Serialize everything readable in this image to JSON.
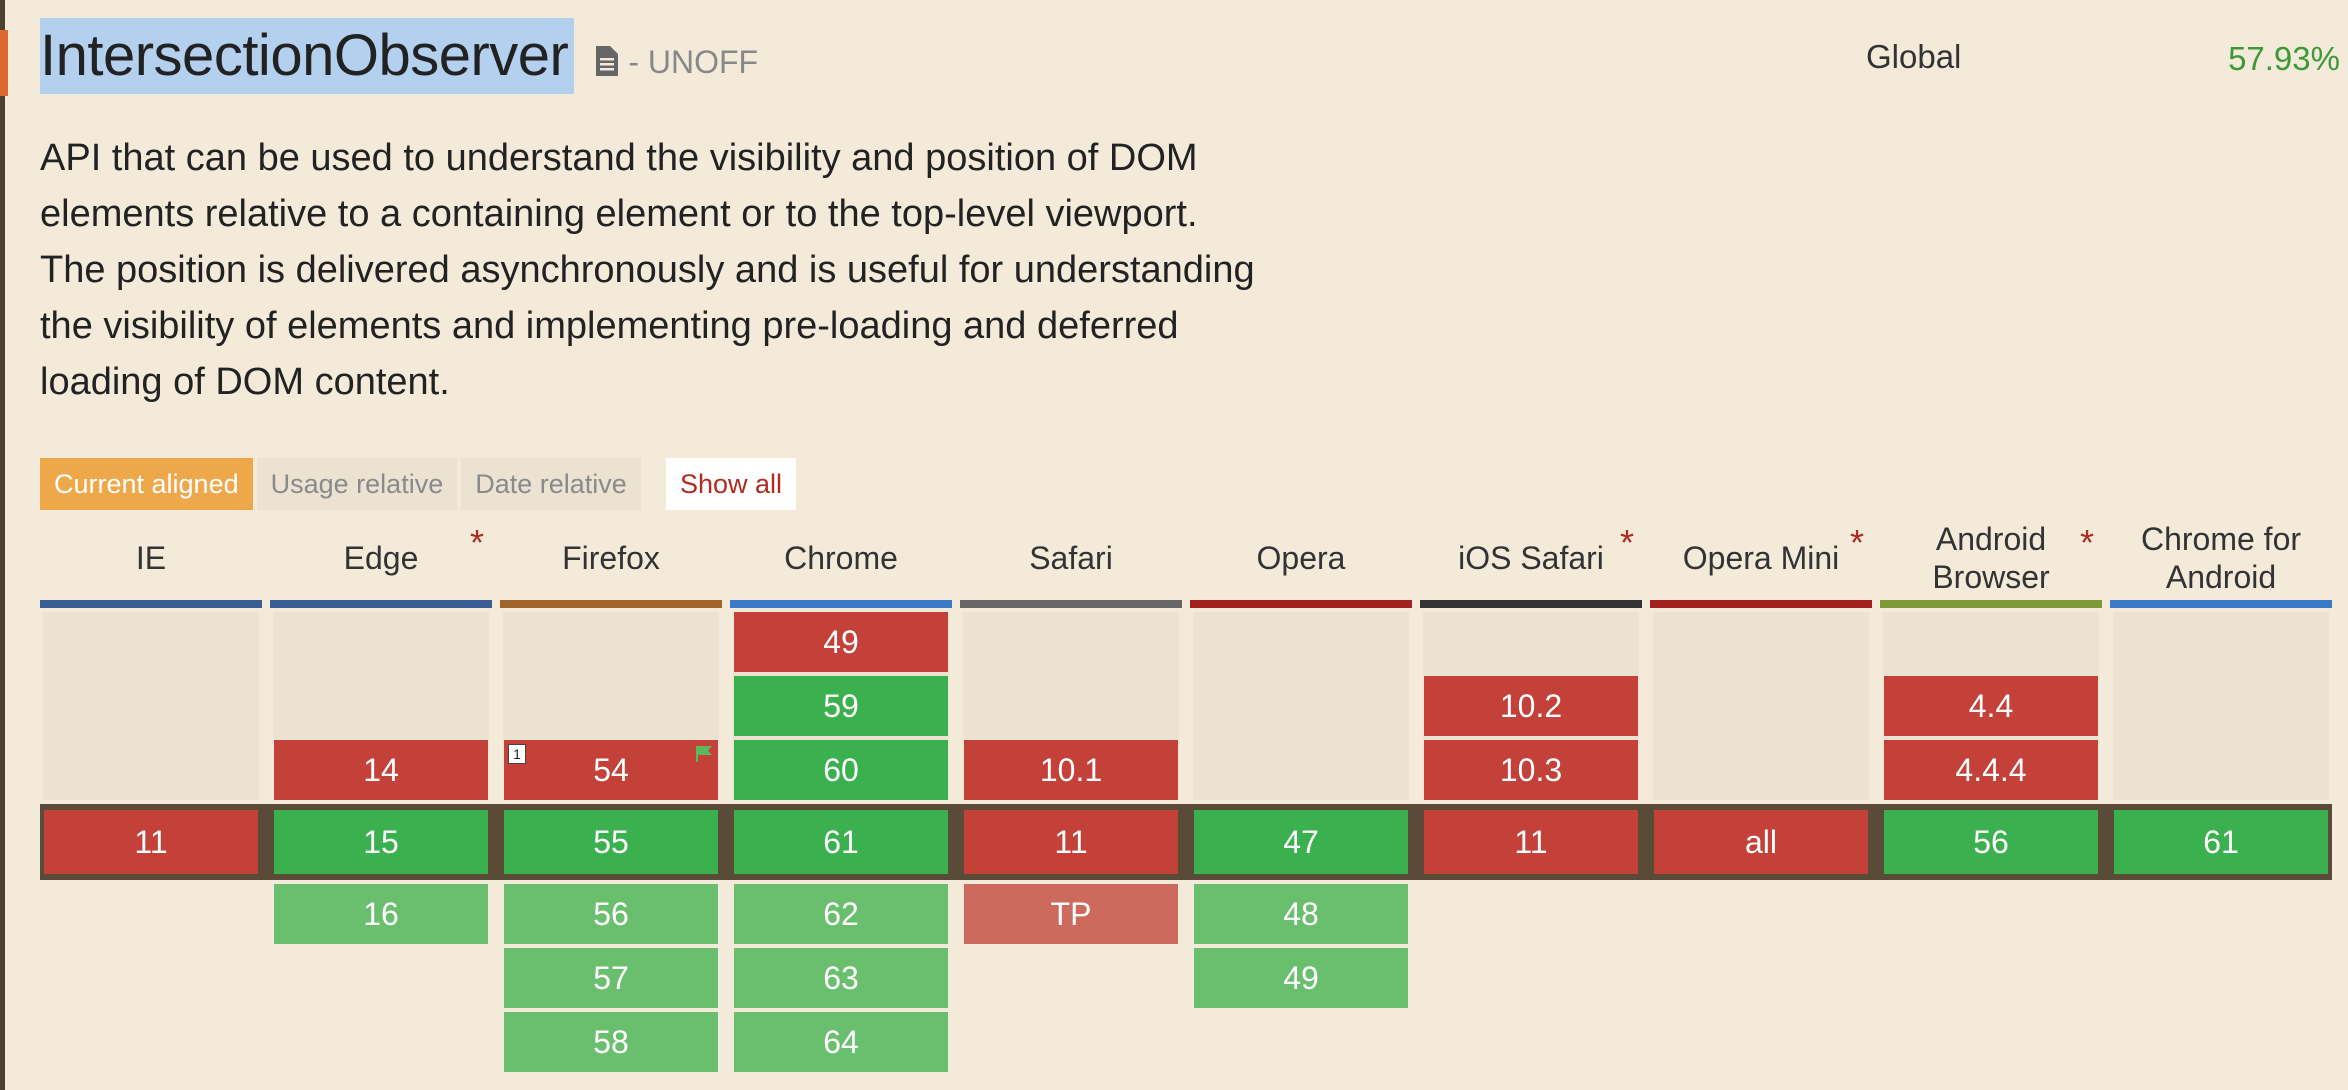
{
  "feature": {
    "title": "IntersectionObserver",
    "status": "- UNOFF",
    "global_label": "Global",
    "global_pct": "57.93%",
    "description": "API that can be used to understand the visibility and position of DOM elements relative to a containing element or to the top-level viewport. The position is delivered asynchronously and is useful for understanding the visibility of elements and implementing pre-loading and deferred loading of DOM content."
  },
  "tabs": [
    "Current aligned",
    "Usage relative",
    "Date relative"
  ],
  "show_all": "Show all",
  "colors": {
    "no": "#c4413a",
    "yes": "#3ab04e",
    "future_yes": "#6abf6e",
    "future_no": "#ce6a5d"
  },
  "browsers": [
    {
      "name": "IE",
      "star": false,
      "color": "#3a5d94",
      "past": [],
      "current": {
        "v": "11",
        "s": "n"
      },
      "future": []
    },
    {
      "name": "Edge",
      "star": true,
      "color": "#3a5d94",
      "past": [
        {
          "v": "14",
          "s": "n"
        }
      ],
      "current": {
        "v": "15",
        "s": "y"
      },
      "future": [
        {
          "v": "16",
          "s": "fy"
        }
      ]
    },
    {
      "name": "Firefox",
      "star": false,
      "color": "#a1642a",
      "past": [
        {
          "v": "54",
          "s": "n",
          "note": "1",
          "flag": true
        }
      ],
      "current": {
        "v": "55",
        "s": "y"
      },
      "future": [
        {
          "v": "56",
          "s": "fy"
        },
        {
          "v": "57",
          "s": "fy"
        },
        {
          "v": "58",
          "s": "fy"
        }
      ]
    },
    {
      "name": "Chrome",
      "star": false,
      "color": "#3b7ac4",
      "past": [
        {
          "v": "49",
          "s": "n"
        },
        {
          "v": "59",
          "s": "y"
        },
        {
          "v": "60",
          "s": "y"
        }
      ],
      "current": {
        "v": "61",
        "s": "y"
      },
      "future": [
        {
          "v": "62",
          "s": "fy"
        },
        {
          "v": "63",
          "s": "fy"
        },
        {
          "v": "64",
          "s": "fy"
        }
      ]
    },
    {
      "name": "Safari",
      "star": false,
      "color": "#666666",
      "past": [
        {
          "v": "10.1",
          "s": "n"
        }
      ],
      "current": {
        "v": "11",
        "s": "n"
      },
      "future": [
        {
          "v": "TP",
          "s": "fn"
        }
      ]
    },
    {
      "name": "Opera",
      "star": false,
      "color": "#a32020",
      "past": [],
      "current": {
        "v": "47",
        "s": "y"
      },
      "future": [
        {
          "v": "48",
          "s": "fy"
        },
        {
          "v": "49",
          "s": "fy"
        }
      ]
    },
    {
      "name": "iOS Safari",
      "star": true,
      "color": "#333333",
      "past": [
        {
          "v": "10.2",
          "s": "n"
        },
        {
          "v": "10.3",
          "s": "n"
        }
      ],
      "current": {
        "v": "11",
        "s": "n"
      },
      "future": []
    },
    {
      "name": "Opera Mini",
      "star": true,
      "color": "#a32020",
      "past": [],
      "current": {
        "v": "all",
        "s": "n"
      },
      "future": []
    },
    {
      "name": "Android Browser",
      "star": true,
      "color": "#7e9a38",
      "past": [
        {
          "v": "4.4",
          "s": "n"
        },
        {
          "v": "4.4.4",
          "s": "n"
        }
      ],
      "current": {
        "v": "56",
        "s": "y"
      },
      "future": []
    },
    {
      "name": "Chrome for Android",
      "star": false,
      "color": "#3b7ac4",
      "past": [],
      "current": {
        "v": "61",
        "s": "y"
      },
      "future": []
    }
  ]
}
